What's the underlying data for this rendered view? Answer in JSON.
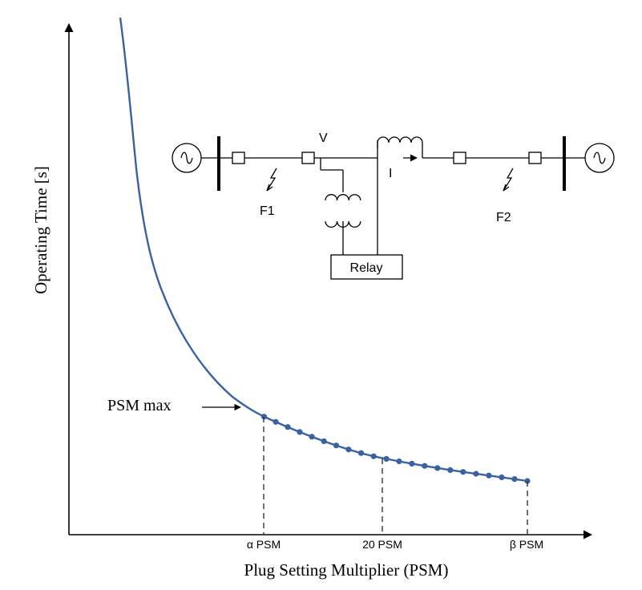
{
  "chart_data": {
    "type": "line",
    "xlabel": "Plug Setting Multiplier (PSM)",
    "ylabel": "Operating Time [s]",
    "x_ticks": [
      "α PSM",
      "20 PSM",
      "β PSM"
    ],
    "annotations": {
      "psm_max": "PSM max"
    },
    "colors": {
      "curve": "#3a62a3",
      "marker": "#3a62a3",
      "axis": "#000000"
    },
    "grid": false
  },
  "diagram": {
    "labels": {
      "voltage": "V",
      "current": "I",
      "fault1": "F1",
      "fault2": "F2",
      "relay": "Relay"
    },
    "icons": [
      "source-icon",
      "fault-arrow-icon",
      "transformer-icon",
      "circuit-breaker-icon"
    ]
  }
}
